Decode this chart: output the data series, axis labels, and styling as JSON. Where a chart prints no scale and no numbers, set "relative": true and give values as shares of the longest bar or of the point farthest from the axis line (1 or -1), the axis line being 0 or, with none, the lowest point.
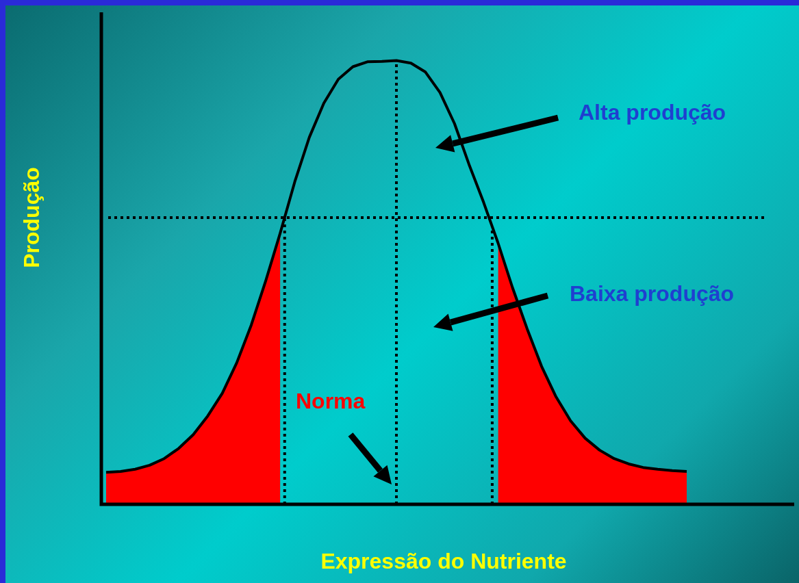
{
  "chart_data": {
    "type": "line",
    "relative": true,
    "xlabel": "Expressão do Nutriente",
    "ylabel": "Produção",
    "tick_labels": false,
    "grid": false,
    "legend": false,
    "marker": "none",
    "line_style": "solid",
    "categories": [
      null,
      null,
      null,
      null,
      null,
      null,
      null,
      null,
      null,
      null,
      null,
      null,
      null,
      null,
      null,
      null,
      null,
      null,
      null,
      null,
      null,
      null,
      null,
      null,
      null,
      null,
      null,
      null,
      null,
      null,
      null,
      null,
      null,
      null,
      null,
      null,
      null,
      null,
      null,
      null,
      null
    ],
    "series": [
      {
        "type": "line",
        "color": "#000000",
        "values": [
          0.072,
          0.074,
          0.079,
          0.088,
          0.103,
          0.126,
          0.157,
          0.199,
          0.25,
          0.319,
          0.404,
          0.504,
          0.612,
          0.727,
          0.827,
          0.904,
          0.958,
          0.986,
          0.997,
          0.998,
          1,
          0.994,
          0.974,
          0.928,
          0.858,
          0.766,
          0.681,
          0.589,
          0.488,
          0.396,
          0.311,
          0.242,
          0.188,
          0.149,
          0.122,
          0.103,
          0.091,
          0.083,
          0.079,
          0.076,
          0.074
        ]
      },
      {
        "type": "area",
        "color": "#ff0000",
        "values": [
          0.072,
          0.074,
          0.079,
          0.088,
          0.103,
          0.126,
          0.157,
          0.199,
          0.25,
          0.319,
          0.404,
          0.504,
          0.612,
          null,
          null,
          null,
          null,
          null,
          null,
          null,
          null,
          null,
          null,
          null,
          null,
          null,
          null,
          null,
          null,
          null,
          null,
          null,
          null,
          null,
          null,
          null,
          null,
          null,
          null,
          null,
          null
        ]
      },
      {
        "type": "area",
        "color": "#ff0000",
        "values": [
          null,
          null,
          null,
          null,
          null,
          null,
          null,
          null,
          null,
          null,
          null,
          null,
          null,
          null,
          null,
          null,
          null,
          null,
          null,
          null,
          null,
          null,
          null,
          null,
          null,
          null,
          null,
          0.589,
          0.488,
          0.396,
          0.311,
          0.242,
          0.188,
          0.149,
          0.122,
          0.103,
          0.091,
          0.083,
          0.079,
          0.076,
          0.074
        ]
      }
    ],
    "ref_lines": [
      {
        "axis": "y",
        "value": 0.646,
        "color": "#000000",
        "line_style": "dotted"
      }
    ],
    "annotations": [
      "Alta produção",
      "Baixa produção",
      "Norma"
    ]
  }
}
